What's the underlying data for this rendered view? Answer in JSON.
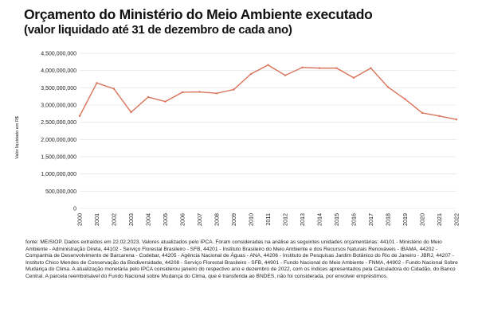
{
  "header": {
    "title": "Orçamento do Ministério do Meio Ambiente executado",
    "subtitle": "(valor liquidado até 31 de dezembro de cada ano)"
  },
  "chart_data": {
    "type": "line",
    "title": "Orçamento do Ministério do Meio Ambiente executado",
    "subtitle": "(valor liquidado até 31 de dezembro de cada ano)",
    "xlabel": "",
    "ylabel": "Valor liquidado em R$",
    "ylim": [
      0,
      4500000000
    ],
    "yticks": [
      0,
      500000000,
      1000000000,
      1500000000,
      2000000000,
      2500000000,
      3000000000,
      3500000000,
      4000000000,
      4500000000
    ],
    "ytick_labels": [
      "0",
      "500,000,000",
      "1,000,000,000",
      "1,500,000,000",
      "2,000,000,000",
      "2,500,000,000",
      "3,000,000,000",
      "3,500,000,000",
      "4,000,000,000",
      "4,500,000,000"
    ],
    "grid": true,
    "line_color": "#d9735a",
    "categories": [
      "2000",
      "2001",
      "2002",
      "2003",
      "2004",
      "2005",
      "2006",
      "2007",
      "2008",
      "2009",
      "2010",
      "2011",
      "2012",
      "2013",
      "2014",
      "2015",
      "2016",
      "2017",
      "2018",
      "2019",
      "2020",
      "2021",
      "2022"
    ],
    "values": [
      2680000000,
      3640000000,
      3470000000,
      2790000000,
      3230000000,
      3100000000,
      3370000000,
      3380000000,
      3340000000,
      3450000000,
      3900000000,
      4160000000,
      3860000000,
      4090000000,
      4070000000,
      4070000000,
      3790000000,
      4070000000,
      3520000000,
      3170000000,
      2770000000,
      2680000000,
      2580000000
    ]
  },
  "source": "fonte: ME/SIOP. Dados extraídos em 22.02.2023. Valores atualizados pelo IPCA. Foram consideradas na análise as seguintes unidades orçamentárias: 44101 - Ministério do Meio Ambiente - Administração Direta, 44102 - Serviço Florestal Brasileiro - SFB, 44201 - Instituto Brasileiro do Meio Ambiente e dos Recursos Naturais Renováveis - IBAMA, 44202 - Companhia de Desenvolvimento de Barcarena - Codebar, 44205 - Agência Nacional de Águas - ANA, 44206 - Instituto de Pesquisas Jardim Botânico do Rio de Janeiro - JBRJ, 44207 - Instituto Chico Mendes de Conservação da Biodiversidade, 44208 - Serviço Florestal Brasileiro - SFB, 44901 - Fundo Nacional do Meio Ambiente - FNMA, 44902 - Fundo Nacional Sobre Mudança do Clima. A atualização monetária pelo IPCA considerou janeiro do respectivo ano e dezembro de 2022, com os índices apresentados pela Calculadora do Cidadão, do Banco Central. A parcela reembolsável do Fundo Nacional sobre Mudança do Clima, que é transferida ao BNDES, não foi considerada, por envolver empréstimos."
}
